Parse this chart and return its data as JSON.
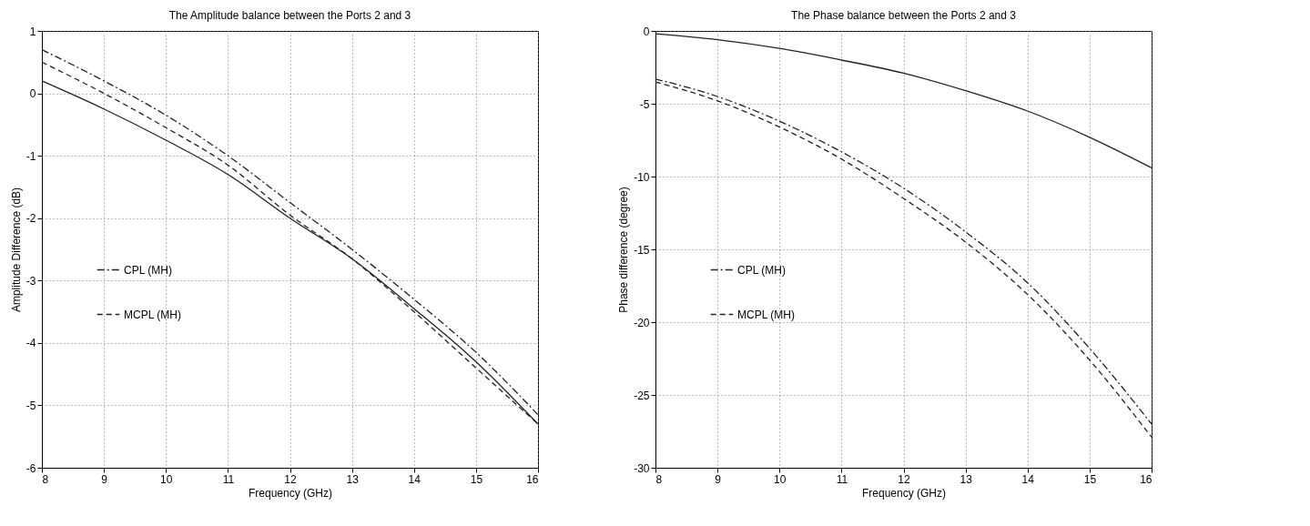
{
  "chart_data": [
    {
      "type": "line",
      "title": "The Amplitude balance between the Ports 2 and 3",
      "xlabel": "Frequency (GHz)",
      "ylabel": "Amplitude Difference  (dB)",
      "x": [
        8,
        9,
        10,
        11,
        12,
        13,
        14,
        15,
        16
      ],
      "xlim": [
        8,
        16
      ],
      "xticks": [
        8,
        9,
        10,
        11,
        12,
        13,
        14,
        15,
        16
      ],
      "ylim": [
        -6,
        1
      ],
      "yticks": [
        -6,
        -5,
        -4,
        -3,
        -2,
        -1,
        0,
        1
      ],
      "grid": true,
      "legend": "left",
      "series": [
        {
          "name": "CPL (MH)",
          "color": "#222222",
          "line_style": "dashdot",
          "values": [
            0.7,
            0.2,
            -0.35,
            -1.0,
            -1.75,
            -2.5,
            -3.3,
            -4.15,
            -5.15
          ]
        },
        {
          "name": "MCPL (MH)",
          "color": "#222222",
          "line_style": "dashed",
          "values": [
            0.5,
            0.0,
            -0.55,
            -1.15,
            -1.95,
            -2.65,
            -3.5,
            -4.4,
            -5.3
          ]
        },
        {
          "color": "#222222",
          "line_style": "solid",
          "values": [
            0.2,
            -0.25,
            -0.75,
            -1.3,
            -2.0,
            -2.65,
            -3.45,
            -4.3,
            -5.3
          ]
        }
      ]
    },
    {
      "type": "line",
      "title": "The Phase balance between the Ports 2 and 3",
      "xlabel": "Frequency (GHz)",
      "ylabel": "Phase difference  (degree)",
      "x": [
        8,
        9,
        10,
        11,
        12,
        13,
        14,
        15,
        16
      ],
      "xlim": [
        8,
        16
      ],
      "xticks": [
        8,
        9,
        10,
        11,
        12,
        13,
        14,
        15,
        16
      ],
      "ylim": [
        -30,
        0
      ],
      "yticks": [
        -30,
        -25,
        -20,
        -15,
        -10,
        -5,
        0
      ],
      "grid": true,
      "legend": "left",
      "series": [
        {
          "name": "CPL (MH)",
          "color": "#222222",
          "line_style": "dashdot",
          "values": [
            -3.3,
            -4.5,
            -6.2,
            -8.3,
            -10.8,
            -13.8,
            -17.3,
            -21.8,
            -27.0
          ]
        },
        {
          "name": "MCPL (MH)",
          "color": "#222222",
          "line_style": "dashed",
          "values": [
            -3.5,
            -4.8,
            -6.6,
            -8.8,
            -11.5,
            -14.5,
            -18.1,
            -22.6,
            -27.9
          ]
        },
        {
          "color": "#222222",
          "line_style": "solid",
          "values": [
            -0.2,
            -0.6,
            -1.2,
            -2.0,
            -2.9,
            -4.1,
            -5.5,
            -7.3,
            -9.4
          ]
        }
      ]
    }
  ]
}
